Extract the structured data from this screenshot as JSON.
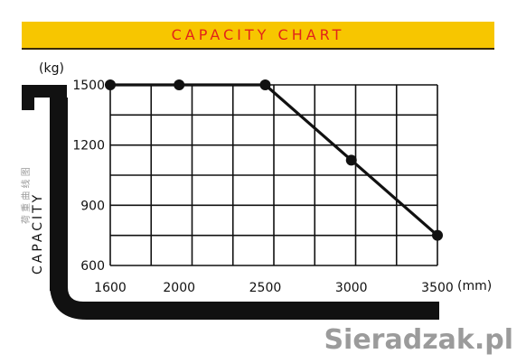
{
  "title": "CAPACITY CHART",
  "watermark": "Sieradzak.pl",
  "faint_text": "荷 重 曲 线 图",
  "chart_data": {
    "type": "line",
    "title": "CAPACITY CHART",
    "xlabel": "",
    "ylabel": "CAPACITY",
    "x_unit": "(mm)",
    "y_unit": "(kg)",
    "x_ticks": [
      1600,
      2000,
      2500,
      3000,
      3500
    ],
    "y_ticks": [
      600,
      900,
      1200,
      1500
    ],
    "xlim": [
      1600,
      3500
    ],
    "ylim": [
      600,
      1500
    ],
    "grid": true,
    "series": [
      {
        "x": [
          1600,
          2000,
          2500,
          3000,
          3500
        ],
        "y": [
          1500,
          1500,
          1500,
          1125,
          750
        ]
      }
    ],
    "colors": {
      "banner": "#f7c600",
      "title": "#e2231a",
      "line": "#111111"
    }
  }
}
